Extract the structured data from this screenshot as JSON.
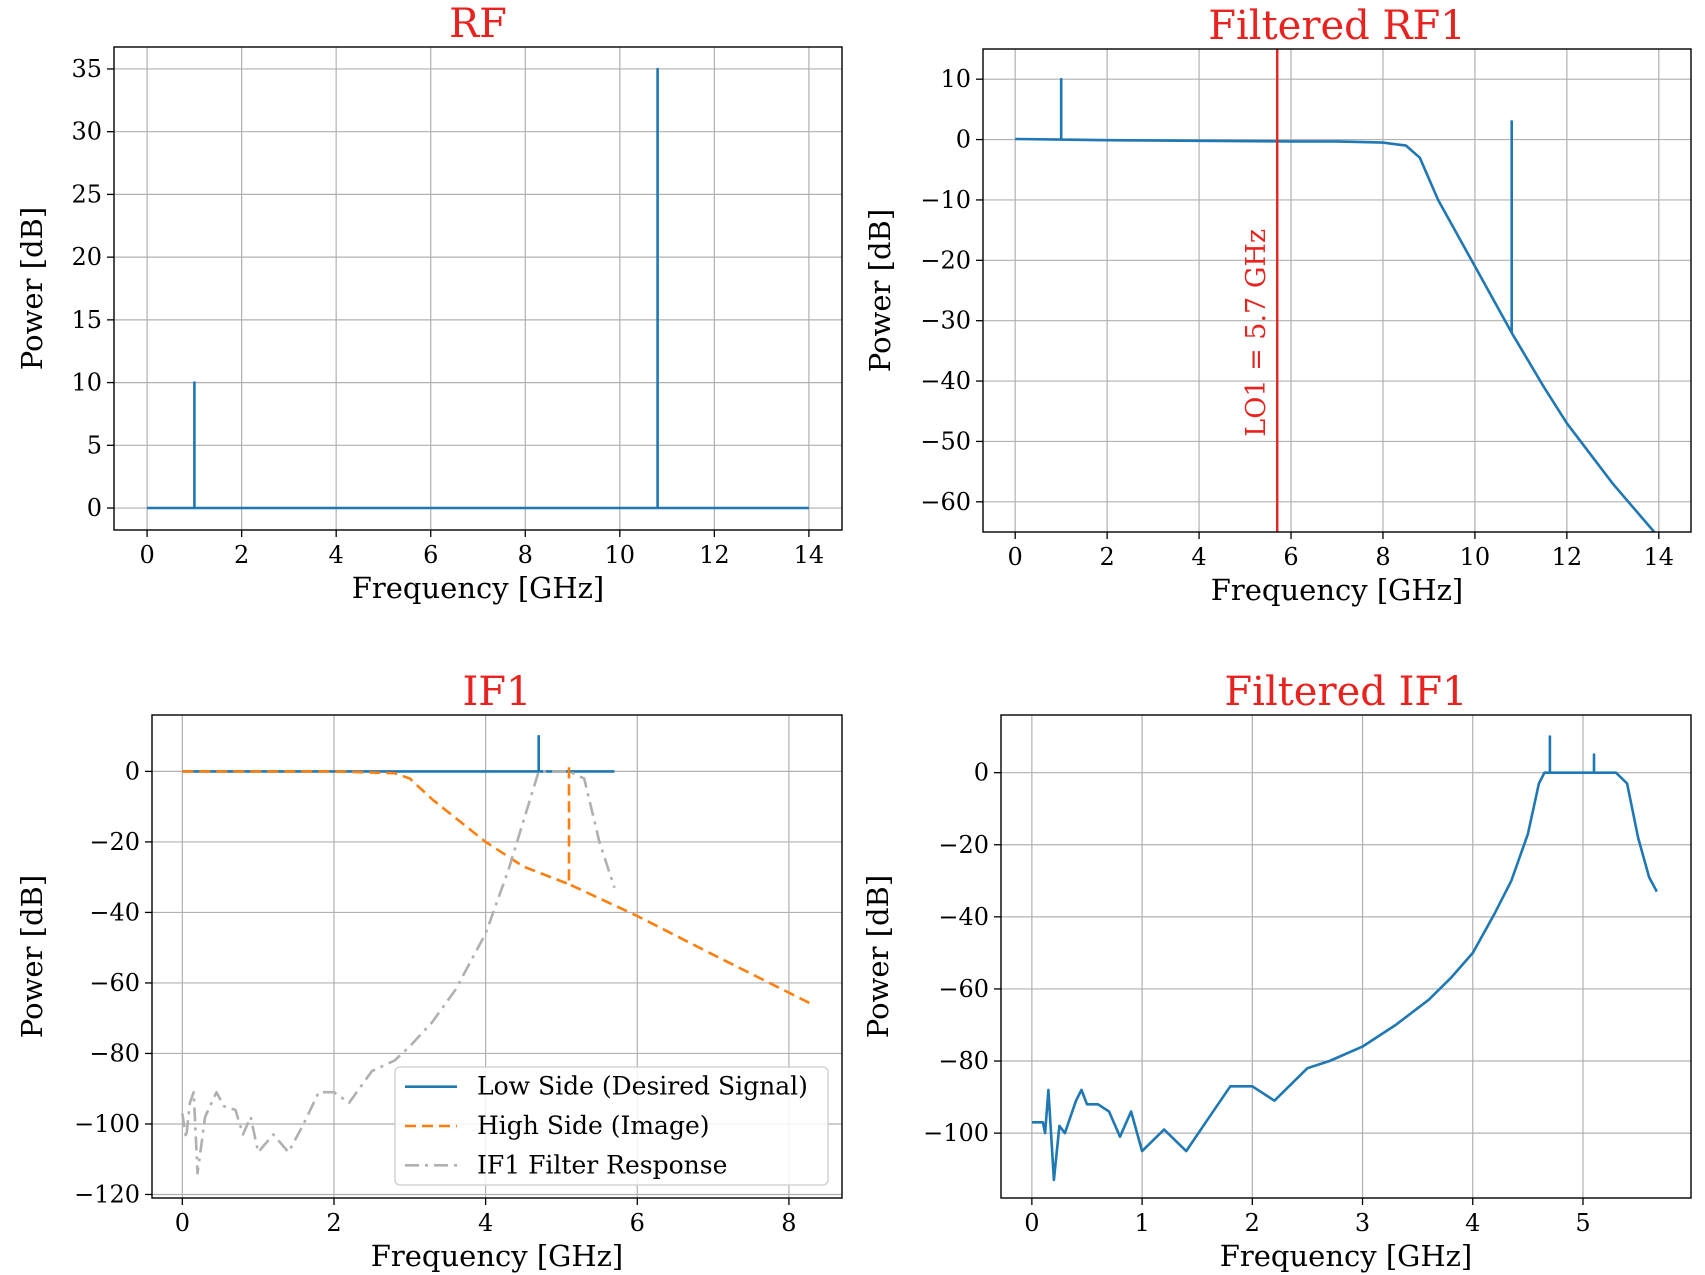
{
  "colors": {
    "title": "#e8231f",
    "low_side": "#1f77b4",
    "high_side": "#ff7f0e",
    "filter_response": "#b0b0b0",
    "lo_marker": "#e8231f",
    "grid": "#b0b0b0"
  },
  "chart_data": [
    {
      "type": "line",
      "title": "RF",
      "xlabel": "Frequency [GHz]",
      "ylabel": "Power [dB]",
      "xlim": [
        -0.7,
        14.7
      ],
      "ylim": [
        -1.75,
        36.75
      ],
      "xticks": [
        0,
        2,
        4,
        6,
        8,
        10,
        12,
        14
      ],
      "yticks": [
        0,
        5,
        10,
        15,
        20,
        25,
        30,
        35
      ],
      "grid": true,
      "series": [
        {
          "style": "solid",
          "color": "#1f77b4",
          "x": [
            0,
            1,
            1,
            1,
            10.8,
            10.8,
            10.8,
            14
          ],
          "y": [
            0,
            0,
            10,
            0,
            0,
            35,
            0,
            0
          ]
        }
      ]
    },
    {
      "type": "line",
      "title": "Filtered RF1",
      "xlabel": "Frequency [GHz]",
      "ylabel": "Power [dB]",
      "xlim": [
        -0.7,
        14.7
      ],
      "ylim": [
        -65,
        15
      ],
      "xticks": [
        0,
        2,
        4,
        6,
        8,
        10,
        12,
        14
      ],
      "yticks": [
        10,
        0,
        -10,
        -20,
        -30,
        -40,
        -50,
        -60
      ],
      "grid": true,
      "vline": {
        "x": 5.7,
        "label": "LO1 = 5.7 GHz"
      },
      "series": [
        {
          "style": "solid",
          "color": "#1f77b4",
          "x": [
            0,
            1,
            1,
            1,
            2,
            4,
            6,
            7,
            8,
            8.5,
            8.8,
            9.2,
            10,
            10.8,
            10.8,
            10.8,
            11.5,
            12,
            13,
            13.9
          ],
          "y": [
            0.1,
            0,
            10,
            0,
            -0.1,
            -0.2,
            -0.3,
            -0.3,
            -0.5,
            -1,
            -3,
            -10,
            -21,
            -32,
            3,
            -32,
            -41,
            -47,
            -57,
            -65
          ]
        }
      ]
    },
    {
      "type": "line",
      "title": "IF1",
      "xlabel": "Frequency [GHz]",
      "ylabel": "Power [dB]",
      "xlim": [
        -0.4,
        8.7
      ],
      "ylim": [
        -121,
        16
      ],
      "xticks": [
        0,
        2,
        4,
        6,
        8
      ],
      "yticks": [
        0,
        -20,
        -40,
        -60,
        -80,
        -100,
        -120
      ],
      "grid": true,
      "legend": "lower-right",
      "series": [
        {
          "name": "Low Side (Desired Signal)",
          "style": "solid",
          "color": "#1f77b4",
          "x": [
            0,
            4.65,
            4.7,
            4.7,
            4.7,
            5.7
          ],
          "y": [
            0,
            0,
            0,
            10,
            0,
            0
          ]
        },
        {
          "name": "High Side (Image)",
          "style": "dashed",
          "color": "#ff7f0e",
          "x": [
            0,
            2,
            2.8,
            3.0,
            3.3,
            4.0,
            4.5,
            5.1,
            5.1,
            5.1,
            6.0,
            7.0,
            8.3
          ],
          "y": [
            0,
            0,
            -0.5,
            -2,
            -8,
            -20,
            -27,
            -32,
            2,
            -32,
            -41,
            -52,
            -66
          ]
        },
        {
          "name": "IF1 Filter Response",
          "style": "dashdot",
          "color": "#b0b0b0",
          "x": [
            0,
            0.05,
            0.1,
            0.15,
            0.2,
            0.3,
            0.45,
            0.55,
            0.7,
            0.8,
            0.9,
            1.0,
            1.2,
            1.4,
            1.6,
            1.8,
            2.0,
            2.2,
            2.5,
            2.8,
            3.0,
            3.3,
            3.6,
            4.0,
            4.3,
            4.5,
            4.7,
            5.1,
            5.3,
            5.5,
            5.7
          ],
          "y": [
            -97,
            -104,
            -94,
            -91,
            -114,
            -98,
            -91,
            -95,
            -96,
            -103,
            -98,
            -108,
            -103,
            -108,
            -100,
            -91,
            -91,
            -94,
            -85,
            -82,
            -78,
            -71,
            -62,
            -46,
            -28,
            -14,
            0,
            0,
            -2,
            -20,
            -33
          ]
        }
      ]
    },
    {
      "type": "line",
      "title": "Filtered IF1",
      "xlabel": "Frequency [GHz]",
      "ylabel": "Power [dB]",
      "xlim": [
        -0.28,
        5.98
      ],
      "ylim": [
        -118,
        16
      ],
      "xticks": [
        0,
        1,
        2,
        3,
        4,
        5
      ],
      "yticks": [
        0,
        -20,
        -40,
        -60,
        -80,
        -100
      ],
      "grid": true,
      "series": [
        {
          "style": "solid",
          "color": "#1f77b4",
          "x": [
            0,
            0.1,
            0.12,
            0.15,
            0.2,
            0.25,
            0.3,
            0.4,
            0.45,
            0.5,
            0.6,
            0.7,
            0.8,
            0.9,
            1.0,
            1.2,
            1.4,
            1.6,
            1.8,
            2.0,
            2.2,
            2.5,
            2.7,
            3.0,
            3.3,
            3.6,
            3.8,
            4.0,
            4.2,
            4.35,
            4.5,
            4.6,
            4.65,
            4.7,
            4.7,
            4.7,
            5.1,
            5.1,
            5.1,
            5.3,
            5.4,
            5.5,
            5.6,
            5.67
          ],
          "y": [
            -97,
            -97,
            -100,
            -88,
            -113,
            -98,
            -100,
            -91,
            -88,
            -92,
            -92,
            -94,
            -101,
            -94,
            -105,
            -99,
            -105,
            -96,
            -87,
            -87,
            -91,
            -82,
            -80,
            -76,
            -70,
            -63,
            -57,
            -50,
            -39,
            -30,
            -17,
            -3,
            0,
            0,
            10,
            0,
            0,
            5,
            0,
            0,
            -3,
            -18,
            -29,
            -33
          ]
        }
      ]
    }
  ]
}
